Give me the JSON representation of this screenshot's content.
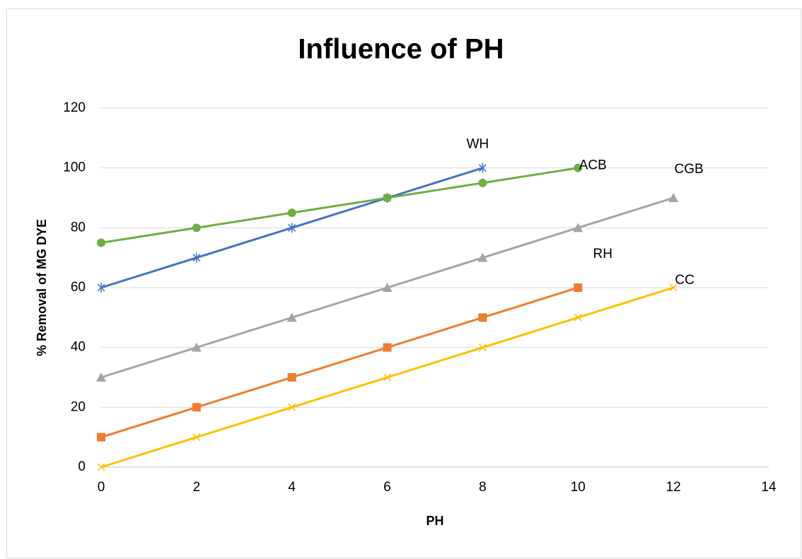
{
  "chart_data": {
    "type": "line",
    "title": "Influence of PH",
    "xlabel": "PH",
    "ylabel": "% Removal of MG DYE",
    "xlim": [
      0,
      14
    ],
    "xticks": [
      0,
      2,
      4,
      6,
      8,
      10,
      12,
      14
    ],
    "ylim": [
      0,
      120
    ],
    "yticks": [
      0,
      20,
      40,
      60,
      80,
      100,
      120
    ],
    "grid": true,
    "series": [
      {
        "name": "WH",
        "color": "#4472c4",
        "marker": "asterisk",
        "x": [
          0,
          2,
          4,
          6,
          8
        ],
        "values": [
          60,
          70,
          80,
          90,
          100
        ]
      },
      {
        "name": "ACB",
        "color": "#70ad47",
        "marker": "circle",
        "x": [
          0,
          2,
          4,
          6,
          8,
          10
        ],
        "values": [
          75,
          80,
          85,
          90,
          95,
          100
        ]
      },
      {
        "name": "CGB",
        "color": "#a5a5a5",
        "marker": "triangle",
        "x": [
          0,
          2,
          4,
          6,
          8,
          10,
          12
        ],
        "values": [
          30,
          40,
          50,
          60,
          70,
          80,
          90
        ]
      },
      {
        "name": "RH",
        "color": "#ed7d31",
        "marker": "square",
        "x": [
          0,
          2,
          4,
          6,
          8,
          10
        ],
        "values": [
          10,
          20,
          30,
          40,
          50,
          60
        ]
      },
      {
        "name": "CC",
        "color": "#ffc000",
        "marker": "x",
        "x": [
          0,
          2,
          4,
          6,
          8,
          10,
          12
        ],
        "values": [
          0,
          10,
          20,
          30,
          40,
          50,
          60
        ]
      }
    ]
  }
}
